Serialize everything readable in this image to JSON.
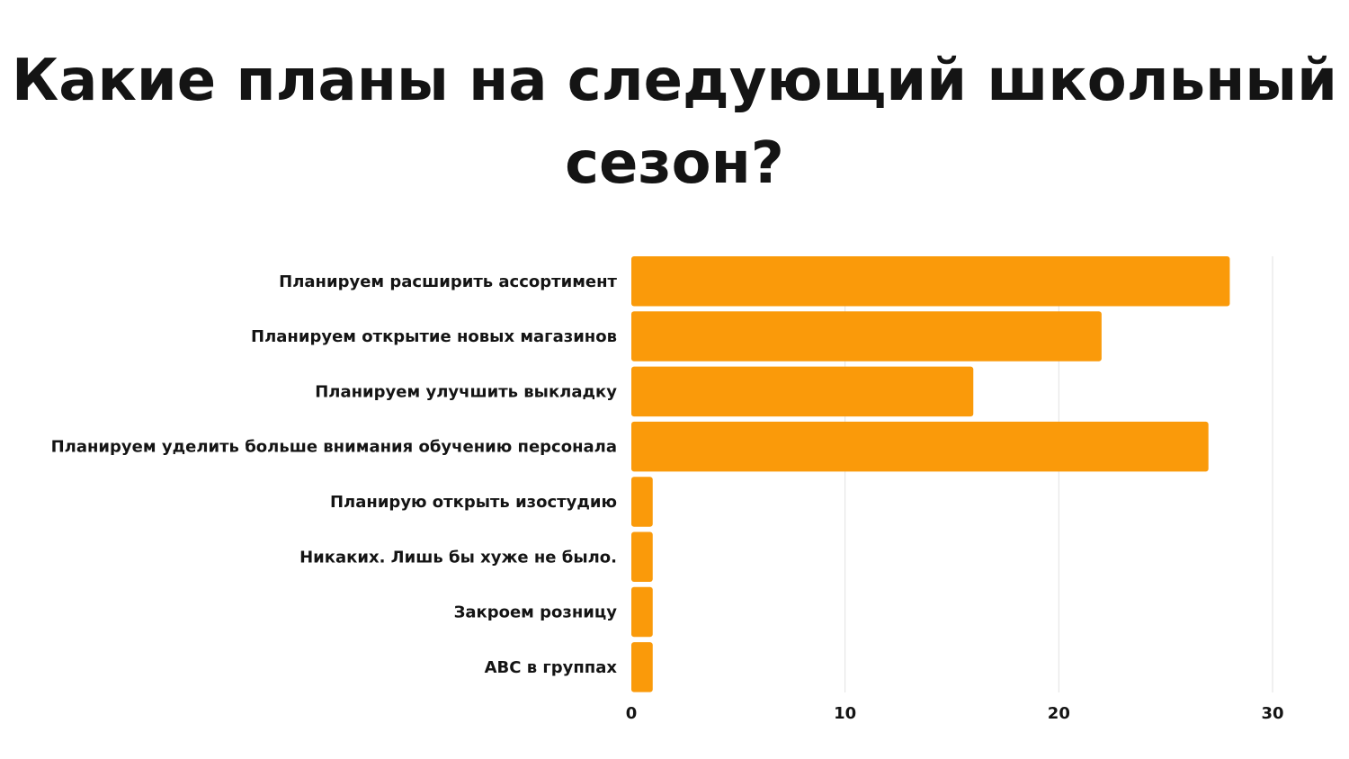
{
  "chart_data": {
    "type": "bar",
    "orientation": "horizontal",
    "title": "Какие планы на следующий школьный сезон?",
    "categories": [
      "Планируем расширить ассортимент",
      "Планируем открытие новых магазинов",
      "Планируем улучшить выкладку",
      "Планируем уделить больше внимания обучению персонала",
      "Планирую открыть изостудию",
      "Никаких. Лишь бы хуже не было.",
      "Закроем розницу",
      "ABC в группах"
    ],
    "values": [
      28,
      22,
      16,
      27,
      1,
      1,
      1,
      1
    ],
    "xlim": [
      0,
      30
    ],
    "xticks": [
      "0",
      "10",
      "20",
      "30"
    ],
    "grid": "vertical",
    "bar_color": "#FA9A0A"
  }
}
